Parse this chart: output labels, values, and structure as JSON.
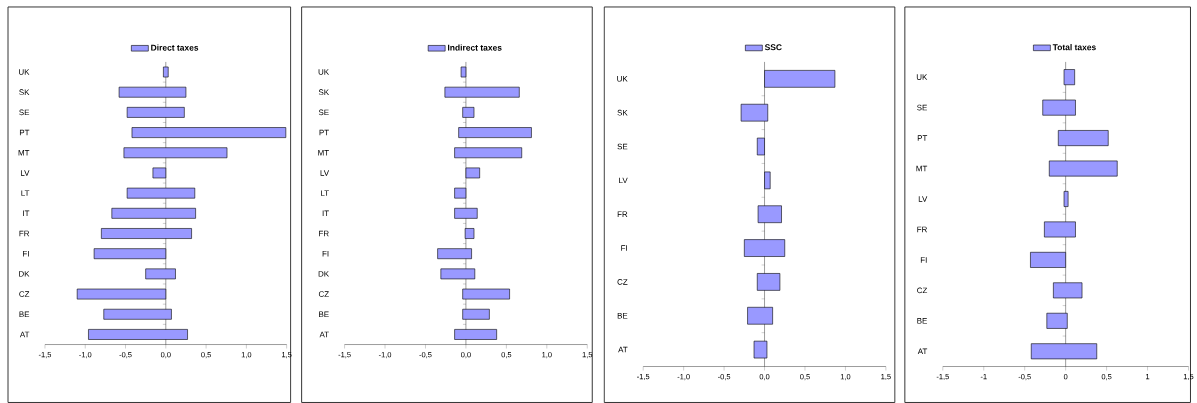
{
  "chart_data": [
    {
      "type": "bar",
      "orientation": "horizontal",
      "legend": "top",
      "categories": [
        "UK",
        "SK",
        "SE",
        "PT",
        "MT",
        "LV",
        "LT",
        "IT",
        "FR",
        "FI",
        "DK",
        "CZ",
        "BE",
        "AT"
      ],
      "series": [
        {
          "name": "Direct taxes",
          "color": "#9999ff",
          "base": [
            -0.03,
            -0.58,
            -0.48,
            -0.42,
            -0.52,
            -0.16,
            -0.48,
            -0.67,
            -0.8,
            -0.89,
            -0.25,
            -1.1,
            -0.77,
            -0.96
          ],
          "values": [
            0.06,
            0.83,
            0.71,
            1.91,
            1.28,
            0.16,
            0.84,
            1.04,
            1.12,
            0.89,
            0.37,
            1.1,
            0.84,
            1.23
          ]
        }
      ],
      "xlim": [
        -1.5,
        1.5
      ],
      "xticks": [
        {
          "value": -1.5,
          "label": "-1,5"
        },
        {
          "value": -1.0,
          "label": "-1,0"
        },
        {
          "value": -0.5,
          "label": "-0,5"
        },
        {
          "value": 0,
          "label": "0,0"
        },
        {
          "value": 0.5,
          "label": "0,5"
        },
        {
          "value": 1.0,
          "label": "1,0"
        },
        {
          "value": 1.5,
          "label": "1,5"
        }
      ]
    },
    {
      "type": "bar",
      "orientation": "horizontal",
      "legend": "top",
      "categories": [
        "UK",
        "SK",
        "SE",
        "PT",
        "MT",
        "LV",
        "LT",
        "IT",
        "FR",
        "FI",
        "DK",
        "CZ",
        "BE",
        "AT"
      ],
      "series": [
        {
          "name": "Indirect taxes",
          "color": "#9999ff",
          "base": [
            -0.06,
            -0.26,
            -0.04,
            -0.09,
            -0.14,
            0,
            -0.14,
            -0.14,
            -0.01,
            -0.35,
            -0.31,
            -0.04,
            -0.04,
            -0.14
          ],
          "values": [
            0.06,
            0.92,
            0.14,
            0.9,
            0.83,
            0.17,
            0.14,
            0.28,
            0.11,
            0.42,
            0.42,
            0.58,
            0.33,
            0.52
          ]
        }
      ],
      "xlim": [
        -1.5,
        1.5
      ],
      "xticks": [
        {
          "value": -1.5,
          "label": "-1,5"
        },
        {
          "value": -1.0,
          "label": "-1,0"
        },
        {
          "value": -0.5,
          "label": "-0,5"
        },
        {
          "value": 0,
          "label": "0,0"
        },
        {
          "value": 0.5,
          "label": "0,5"
        },
        {
          "value": 1.0,
          "label": "1,0"
        },
        {
          "value": 1.5,
          "label": "1,5"
        }
      ]
    },
    {
      "type": "bar",
      "orientation": "horizontal",
      "legend": "top",
      "categories": [
        "UK",
        "SK",
        "SE",
        "LV",
        "FR",
        "FI",
        "CZ",
        "BE",
        "AT"
      ],
      "series": [
        {
          "name": "SSC",
          "color": "#9999ff",
          "base": [
            0,
            -0.29,
            -0.09,
            0,
            -0.08,
            -0.25,
            -0.09,
            -0.21,
            -0.13
          ],
          "values": [
            0.87,
            0.33,
            0.09,
            0.07,
            0.29,
            0.5,
            0.28,
            0.31,
            0.16
          ]
        }
      ],
      "xlim": [
        -1.5,
        1.5
      ],
      "xticks": [
        {
          "value": -1.5,
          "label": "-1,5"
        },
        {
          "value": -1.0,
          "label": "-1,0"
        },
        {
          "value": -0.5,
          "label": "-0,5"
        },
        {
          "value": 0,
          "label": "0,0"
        },
        {
          "value": 0.5,
          "label": "0,5"
        },
        {
          "value": 1.0,
          "label": "1,0"
        },
        {
          "value": 1.5,
          "label": "1,5"
        }
      ]
    },
    {
      "type": "bar",
      "orientation": "horizontal",
      "legend": "top",
      "categories": [
        "UK",
        "SE",
        "PT",
        "MT",
        "LV",
        "FR",
        "FI",
        "CZ",
        "BE",
        "AT"
      ],
      "series": [
        {
          "name": "Total taxes",
          "color": "#9999ff",
          "base": [
            -0.02,
            -0.28,
            -0.09,
            -0.2,
            -0.02,
            -0.26,
            -0.43,
            -0.15,
            -0.23,
            -0.42
          ],
          "values": [
            0.13,
            0.4,
            0.61,
            0.83,
            0.05,
            0.38,
            0.43,
            0.35,
            0.25,
            0.8
          ]
        }
      ],
      "xlim": [
        -1.5,
        1.5
      ],
      "xticks": [
        {
          "value": -1.5,
          "label": "-1,5"
        },
        -1,
        {
          "value": -0.5,
          "label": "-0,5"
        },
        0,
        {
          "value": 0.5,
          "label": "0,5"
        },
        1,
        {
          "value": 1.5,
          "label": "1,5"
        }
      ]
    }
  ]
}
